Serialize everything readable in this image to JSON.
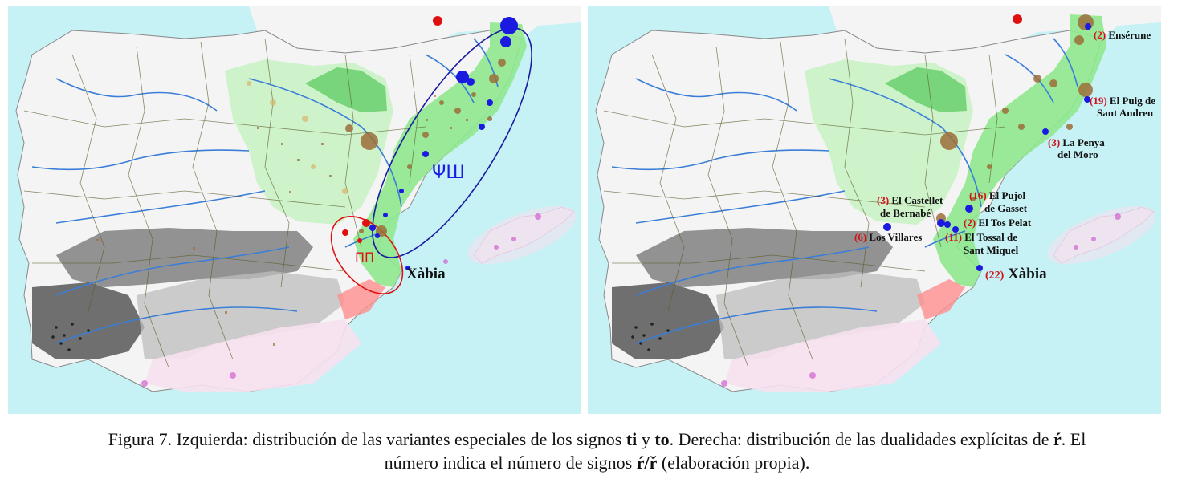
{
  "left_map": {
    "glyphs": "ΨШ",
    "red_glyphs": "ПП",
    "label_xabia": "Xàbia"
  },
  "right_map": {
    "sites": [
      {
        "num": "(2)",
        "name": "Ensérune"
      },
      {
        "num": "(19)",
        "name": "El Puig de",
        "name2": "Sant Andreu"
      },
      {
        "num": "(3)",
        "name": "La Penya",
        "name2": "del Moro"
      },
      {
        "num": "(3)",
        "name": "El Castellet",
        "name2": "de Bernabé"
      },
      {
        "num": "(16)",
        "name": "El Pujol",
        "name2": "de Gasset"
      },
      {
        "num": "(2)",
        "name": "El Tos Pelat"
      },
      {
        "num": "(6)",
        "name": "Los Villares"
      },
      {
        "num": "(11)",
        "name": "El Tossal de",
        "name2": "Sant Miquel"
      },
      {
        "num": "(22)",
        "name": "Xàbia"
      }
    ]
  },
  "caption": {
    "line1_a": "Figura 7. Izquierda: distribución de las variantes especiales de los signos ",
    "ti": "ti",
    "y": " y ",
    "to": "to",
    "line1_b": ". Derecha: distribución de las dualidades explícitas de ",
    "r1": "ŕ",
    "line1_c": ". El",
    "line2_a": "número indica el número de signos ",
    "r2": "ŕ/ř",
    "line2_b": " (elaboración propia)."
  },
  "colors": {
    "sea": "#c6f1f5",
    "land": "#f4f4f4",
    "green_light": "#c7f2c2",
    "green": "#8fe88f",
    "green_dark": "#56c85a",
    "grey_dark": "#5e5e5e",
    "grey_light": "#c8c8c8",
    "pink": "#ff8f8f",
    "pink_light": "#f7e1ef",
    "river": "#3a7ed8",
    "border": "#5a5a2a",
    "brown": "#9c6f3a",
    "blue_dot": "#1a1ae0",
    "red_dot": "#e01010"
  }
}
